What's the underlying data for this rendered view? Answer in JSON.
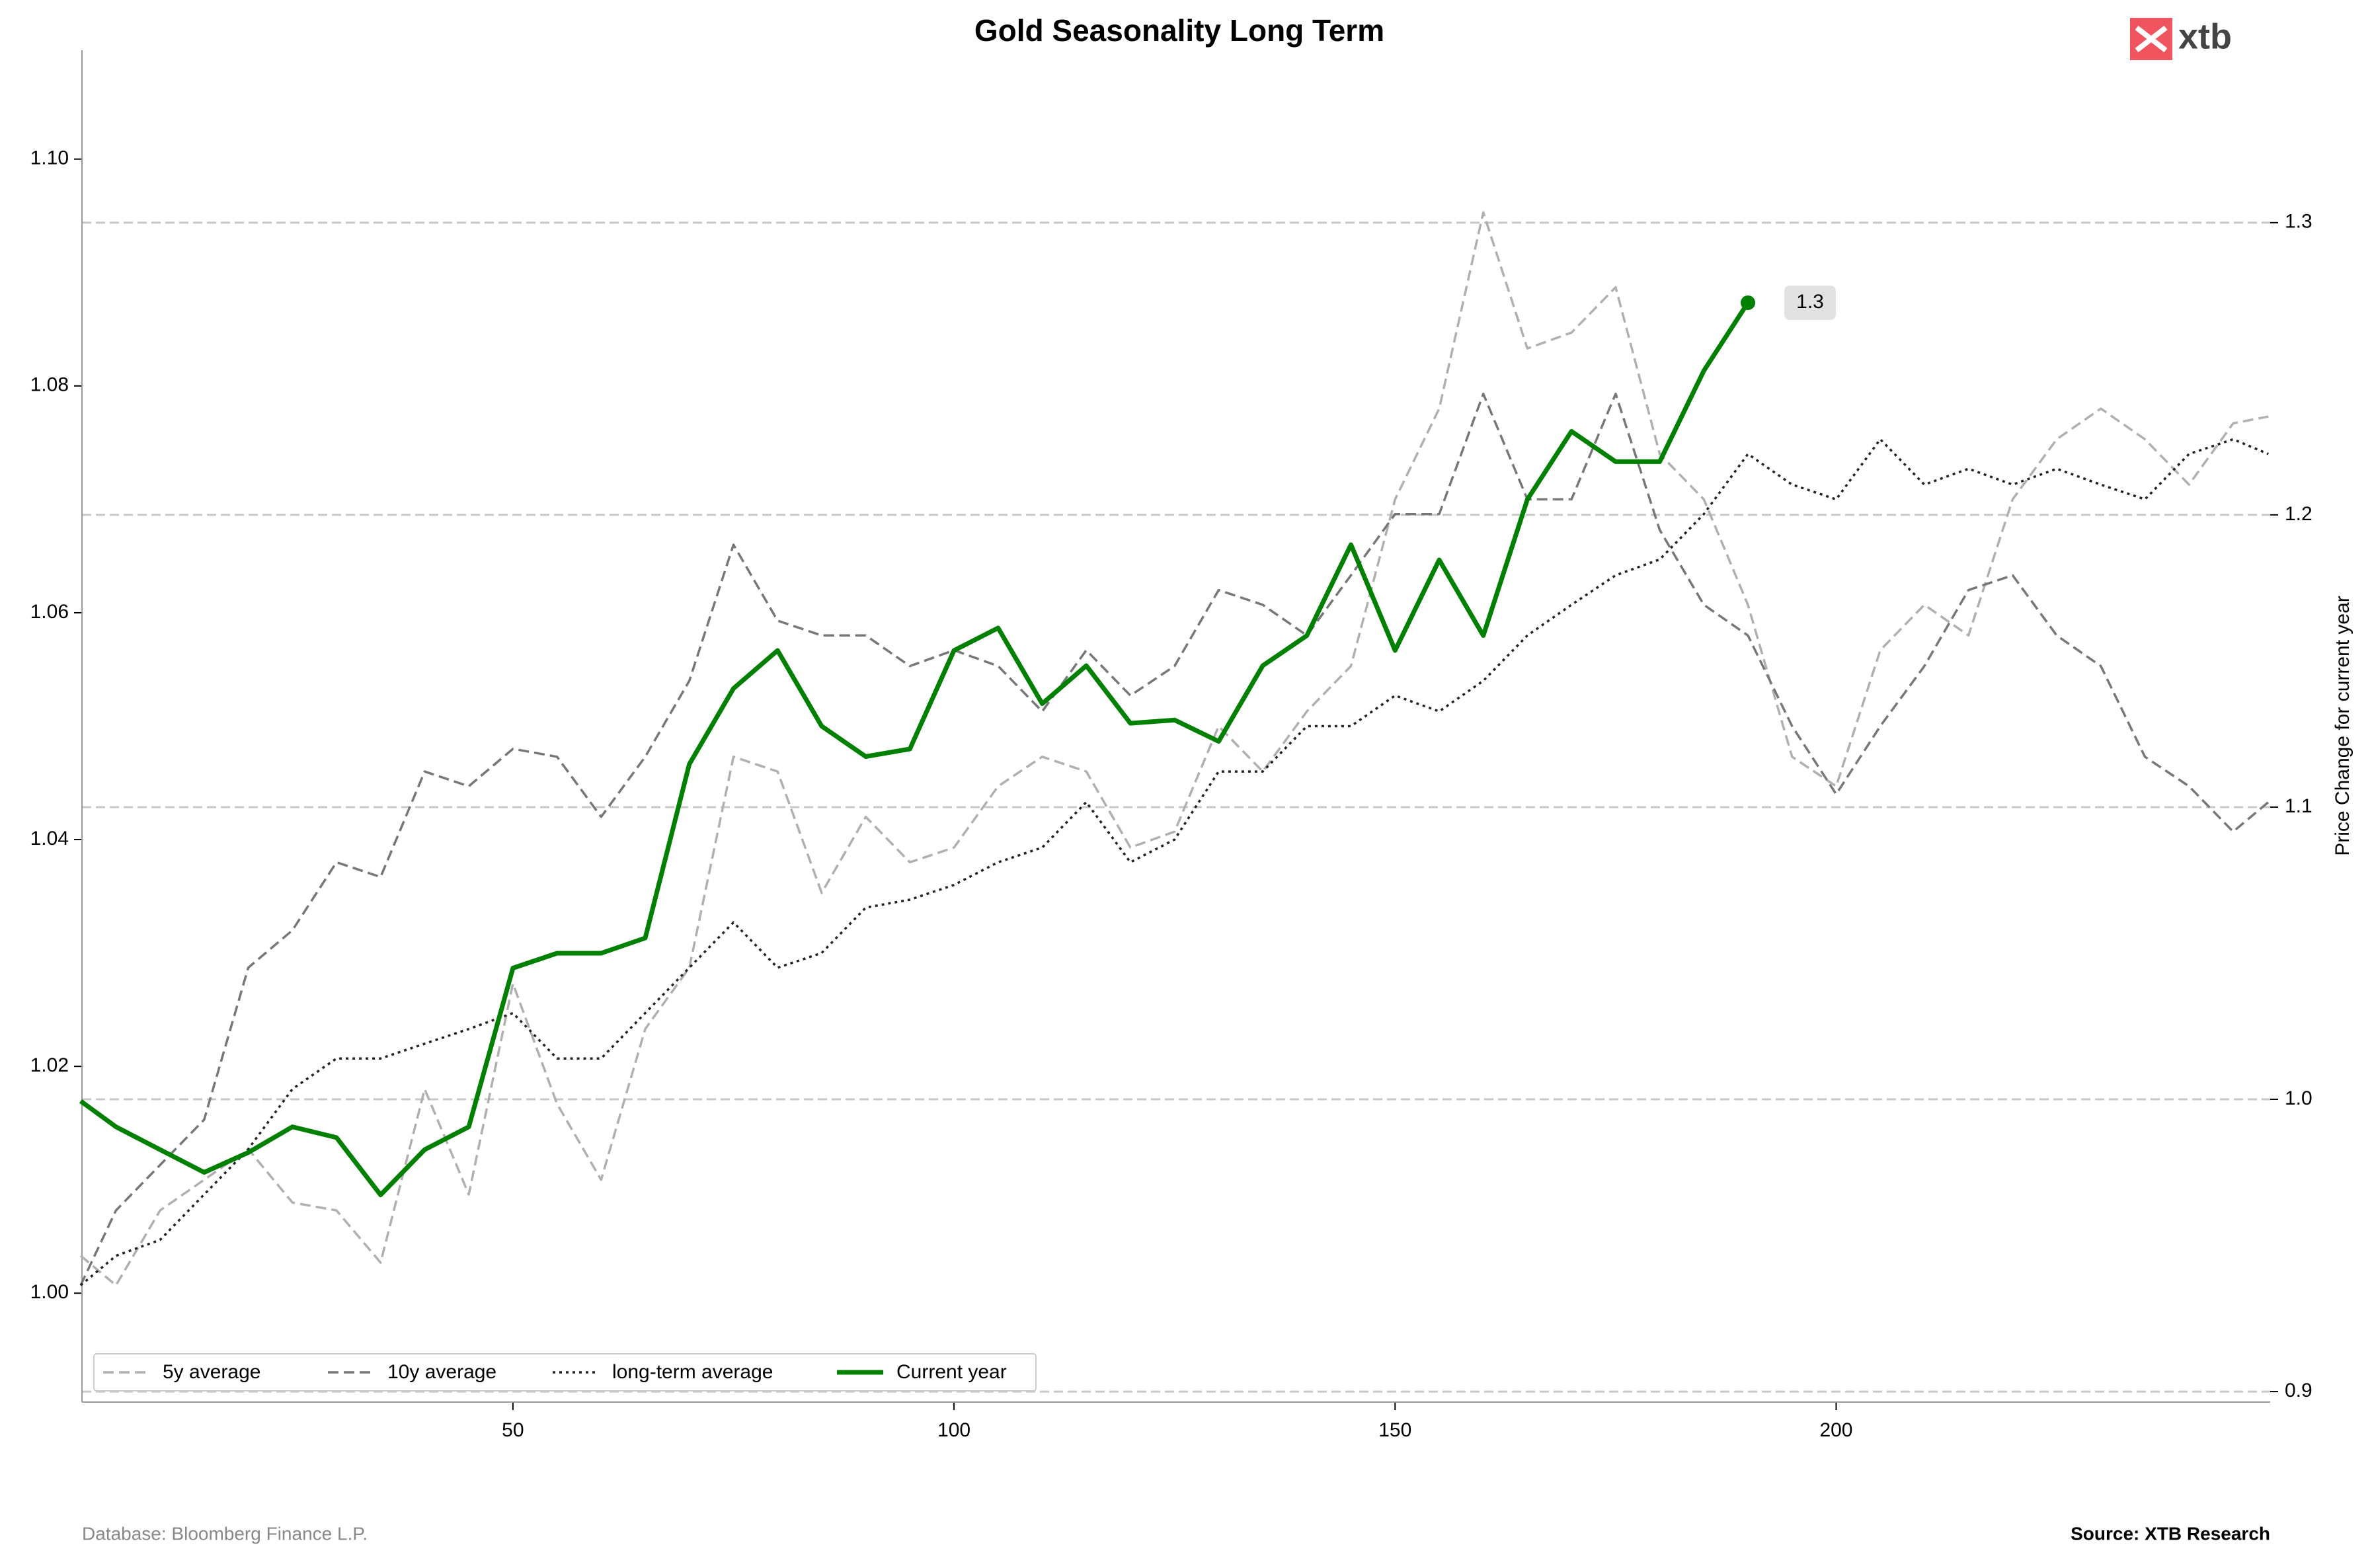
{
  "chart_data": {
    "type": "line",
    "title": "Gold Seasonality Long Term",
    "y2label": "Price Change for current year",
    "logo": "xtb",
    "footer_left": "Database: Bloomberg Finance L.P.",
    "footer_right": "Source: XTB Research",
    "x": [
      1,
      5,
      10,
      15,
      20,
      25,
      30,
      35,
      40,
      45,
      50,
      55,
      60,
      65,
      70,
      75,
      80,
      85,
      90,
      95,
      100,
      105,
      110,
      115,
      120,
      125,
      130,
      135,
      140,
      145,
      150,
      155,
      160,
      165,
      170,
      175,
      180,
      185,
      190,
      195,
      200,
      205,
      210,
      215,
      220,
      225,
      230,
      235,
      240,
      245,
      249
    ],
    "xlim": [
      1.15,
      249.2
    ],
    "xticks": [
      50,
      100,
      150,
      200
    ],
    "ylim": [
      0.9904,
      1.1096
    ],
    "yticks": [
      {
        "value": 1.0,
        "label": "1.00"
      },
      {
        "value": 1.02,
        "label": "1.02"
      },
      {
        "value": 1.04,
        "label": "1.04"
      },
      {
        "value": 1.06,
        "label": "1.06"
      },
      {
        "value": 1.08,
        "label": "1.08"
      },
      {
        "value": 1.1,
        "label": "1.10"
      }
    ],
    "y2lim": [
      0.8964,
      1.359
    ],
    "y2ticks": [
      0.9,
      {
        "value": 1.0,
        "label": "1.0"
      },
      1.1,
      1.2,
      1.3
    ],
    "grid": true,
    "legend": "lower left",
    "series": [
      {
        "name": "5y average",
        "color": "#b0b0b0",
        "style": "dashed",
        "values": [
          1.0033,
          1.0007,
          1.0073,
          1.01,
          1.0127,
          1.008,
          1.0073,
          1.0027,
          1.018,
          1.0087,
          1.0273,
          1.0167,
          1.01,
          1.0233,
          1.0287,
          1.0473,
          1.046,
          1.0353,
          1.042,
          1.038,
          1.0393,
          1.0447,
          1.0473,
          1.046,
          1.0393,
          1.0407,
          1.05,
          1.046,
          1.0513,
          1.0553,
          1.07,
          1.078,
          1.0953,
          1.0833,
          1.0847,
          1.0887,
          1.074,
          1.07,
          1.0607,
          1.0473,
          1.0447,
          1.0567,
          1.0607,
          1.058,
          1.07,
          1.0753,
          1.078,
          1.0753,
          1.0713,
          1.0767,
          1.0773
        ]
      },
      {
        "name": "10y average",
        "color": "#777777",
        "style": "dashed",
        "values": [
          1.0007,
          1.0073,
          1.0113,
          1.0153,
          1.0287,
          1.032,
          1.038,
          1.0367,
          1.046,
          1.0447,
          1.048,
          1.0473,
          1.042,
          1.0473,
          1.054,
          1.066,
          1.0593,
          1.058,
          1.058,
          1.0553,
          1.0567,
          1.0553,
          1.0513,
          1.0567,
          1.0527,
          1.0553,
          1.062,
          1.0607,
          1.058,
          1.0633,
          1.0687,
          1.0687,
          1.0793,
          1.07,
          1.07,
          1.0793,
          1.0673,
          1.0607,
          1.058,
          1.05,
          1.044,
          1.05,
          1.0553,
          1.062,
          1.0633,
          1.058,
          1.0553,
          1.0473,
          1.0447,
          1.0407,
          1.0433
        ]
      },
      {
        "name": "long-term average",
        "color": "#222222",
        "style": "dotted",
        "values": [
          1.0007,
          1.0033,
          1.0047,
          1.0087,
          1.0127,
          1.018,
          1.0207,
          1.0207,
          1.022,
          1.0233,
          1.0247,
          1.0207,
          1.0207,
          1.0247,
          1.0287,
          1.0327,
          1.0287,
          1.03,
          1.034,
          1.0347,
          1.036,
          1.038,
          1.0393,
          1.0433,
          1.038,
          1.04,
          1.046,
          1.046,
          1.05,
          1.05,
          1.0527,
          1.0513,
          1.054,
          1.058,
          1.0607,
          1.0633,
          1.0647,
          1.0687,
          1.074,
          1.0713,
          1.07,
          1.0753,
          1.0713,
          1.0727,
          1.0713,
          1.0727,
          1.0713,
          1.07,
          1.074,
          1.0753,
          1.074
        ]
      },
      {
        "name": "Current year",
        "color": "#008000",
        "style": "solid",
        "axis": "y2",
        "values": [
          0.9994,
          0.9906,
          0.9828,
          0.975,
          0.9818,
          0.9906,
          0.9869,
          0.9673,
          0.9828,
          0.9906,
          1.0449,
          1.05,
          1.05,
          1.0552,
          1.1147,
          1.1406,
          1.1536,
          1.1277,
          1.1173,
          1.1199,
          1.1536,
          1.1613,
          1.1354,
          1.1484,
          1.1287,
          1.1298,
          1.1225,
          1.1484,
          1.1587,
          1.1898,
          1.1536,
          1.1846,
          1.1587,
          1.2053,
          1.2286,
          1.2182,
          1.2182,
          1.2493,
          1.2726,
          null,
          null,
          null,
          null,
          null,
          null,
          null,
          null,
          null,
          null,
          null,
          null
        ]
      }
    ],
    "annotations": [
      {
        "text": "1.3",
        "x": 190,
        "y": 1.2726
      }
    ]
  }
}
